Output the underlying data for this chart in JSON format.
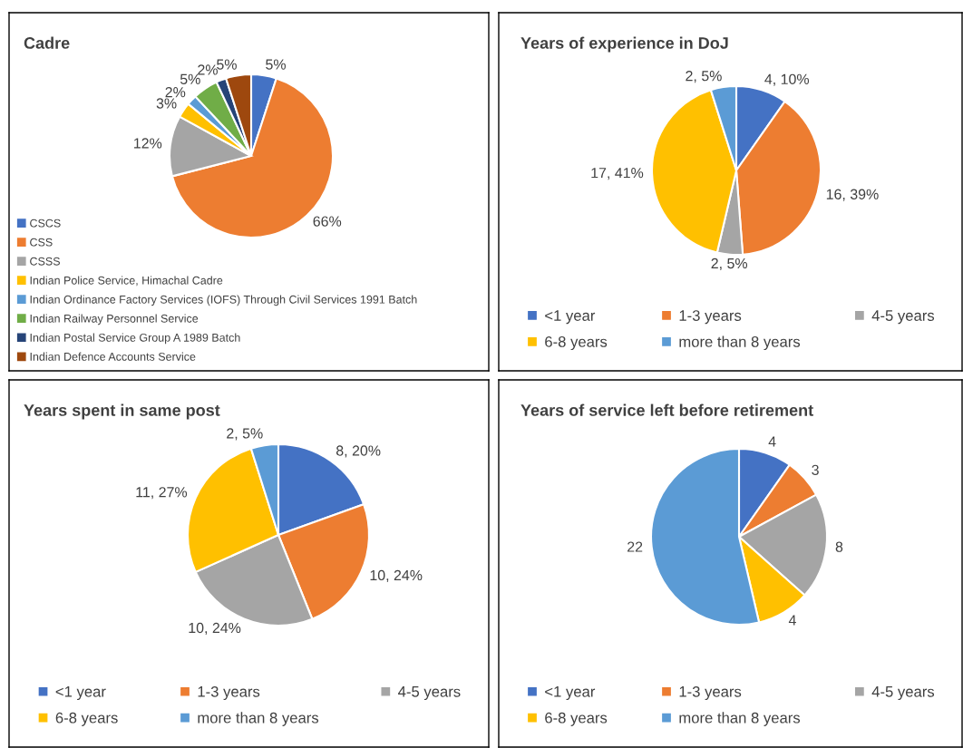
{
  "chart_data": [
    {
      "type": "pie",
      "title": "Cadre",
      "legend": "bottom left",
      "categories": [
        "CSCS",
        "CSS",
        "CSSS",
        "Indian Police Service, Himachal Cadre",
        "Indian Ordinance Factory Services (IOFS) Through Civil Services 1991 Batch",
        "Indian Railway Personnel Service",
        "Indian Postal Service Group A 1989 Batch",
        "Indian Defence Accounts Service"
      ],
      "values": [
        5,
        66,
        12,
        3,
        2,
        5,
        2,
        5
      ],
      "value_labels": [
        "5%",
        "66%",
        "12%",
        "3%",
        "2%",
        "5%",
        "2%",
        "5%"
      ],
      "colors": [
        "#4472c4",
        "#ed7d31",
        "#a5a5a5",
        "#ffc000",
        "#5b9bd5",
        "#70ad47",
        "#264478",
        "#9e480e"
      ]
    },
    {
      "type": "pie",
      "title": "Years of experience in DoJ",
      "legend": "bottom",
      "categories": [
        "<1 year",
        "1-3 years",
        "4-5 years",
        "6-8 years",
        "more than 8 years"
      ],
      "values": [
        4,
        16,
        2,
        17,
        2
      ],
      "value_labels": [
        "4, 10%",
        "16, 39%",
        "2, 5%",
        "17, 41%",
        "2, 5%"
      ],
      "colors": [
        "#4472c4",
        "#ed7d31",
        "#a5a5a5",
        "#ffc000",
        "#5b9bd5"
      ]
    },
    {
      "type": "pie",
      "title": "Years spent in same post",
      "legend": "bottom",
      "categories": [
        "<1 year",
        "1-3 years",
        "4-5 years",
        "6-8 years",
        "more than 8 years"
      ],
      "values": [
        8,
        10,
        10,
        11,
        2
      ],
      "value_labels": [
        "8, 20%",
        "10, 24%",
        "10, 24%",
        "11, 27%",
        "2, 5%"
      ],
      "colors": [
        "#4472c4",
        "#ed7d31",
        "#a5a5a5",
        "#ffc000",
        "#5b9bd5"
      ]
    },
    {
      "type": "pie",
      "title": "Years of service left before retirement",
      "legend": "bottom",
      "data_labels": true,
      "categories": [
        "<1 year",
        "1-3 years",
        "4-5 years",
        "6-8 years",
        "more than 8 years"
      ],
      "values": [
        4,
        3,
        8,
        4,
        22
      ],
      "colors": [
        "#4472c4",
        "#ed7d31",
        "#a5a5a5",
        "#ffc000",
        "#5b9bd5"
      ]
    }
  ]
}
